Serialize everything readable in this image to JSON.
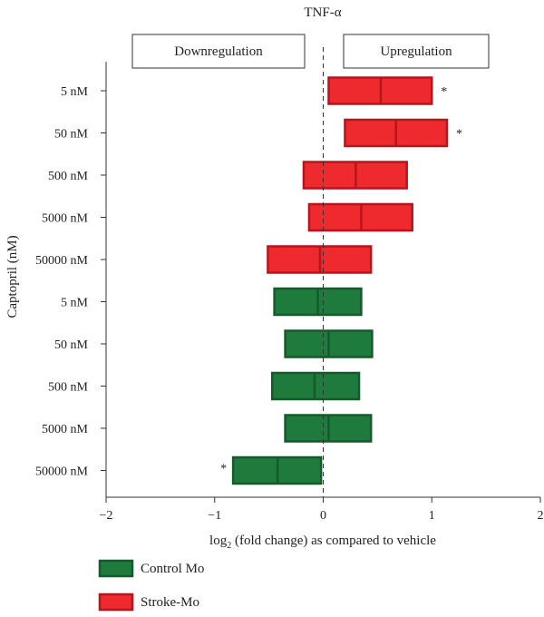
{
  "chart_data": {
    "type": "bar",
    "subtype": "floating-box",
    "title": "TNF-α",
    "ylabel": "Captopril (nM)",
    "xlabel_main": "log",
    "xlabel_sub": "2",
    "xlabel_rest": " (fold change) as compared to vehicle",
    "xlim": [
      -2,
      2
    ],
    "xticks": [
      "−2",
      "−1",
      "0",
      "1",
      "2"
    ],
    "xtick_values": [
      -2,
      -1,
      0,
      1,
      2
    ],
    "reference_line": 0,
    "annotations": {
      "left_box": "Downregulation",
      "right_box": "Upregulation"
    },
    "series": [
      {
        "name": "Stroke-Mo",
        "color": "#ee2a2e",
        "edge": "#b5161c"
      },
      {
        "name": "Control Mo",
        "color": "#1f7a3e",
        "edge": "#145a2b"
      }
    ],
    "categories": [
      "5 nM",
      "50 nM",
      "500 nM",
      "5000 nM",
      "50000 nM",
      "5 nM",
      "50 nM",
      "500 nM",
      "5000 nM",
      "50000 nM"
    ],
    "rows": [
      {
        "label": "5 nM",
        "series": "Stroke-Mo",
        "low": 0.05,
        "mid": 0.53,
        "high": 1.0,
        "significant": "*"
      },
      {
        "label": "50 nM",
        "series": "Stroke-Mo",
        "low": 0.2,
        "mid": 0.67,
        "high": 1.14,
        "significant": "*"
      },
      {
        "label": "500 nM",
        "series": "Stroke-Mo",
        "low": -0.18,
        "mid": 0.3,
        "high": 0.77,
        "significant": ""
      },
      {
        "label": "5000 nM",
        "series": "Stroke-Mo",
        "low": -0.13,
        "mid": 0.35,
        "high": 0.82,
        "significant": ""
      },
      {
        "label": "50000 nM",
        "series": "Stroke-Mo",
        "low": -0.51,
        "mid": -0.03,
        "high": 0.44,
        "significant": ""
      },
      {
        "label": "5 nM",
        "series": "Control Mo",
        "low": -0.45,
        "mid": -0.05,
        "high": 0.35,
        "significant": ""
      },
      {
        "label": "50 nM",
        "series": "Control Mo",
        "low": -0.35,
        "mid": 0.05,
        "high": 0.45,
        "significant": ""
      },
      {
        "label": "500 nM",
        "series": "Control Mo",
        "low": -0.47,
        "mid": -0.08,
        "high": 0.33,
        "significant": ""
      },
      {
        "label": "5000 nM",
        "series": "Control Mo",
        "low": -0.35,
        "mid": 0.05,
        "high": 0.44,
        "significant": ""
      },
      {
        "label": "50000 nM",
        "series": "Control Mo",
        "low": -0.83,
        "mid": -0.42,
        "high": -0.02,
        "significant": "*"
      }
    ],
    "legend": [
      {
        "label": "Control Mo",
        "color": "#1f7a3e",
        "edge": "#145a2b"
      },
      {
        "label": "Stroke-Mo",
        "color": "#ee2a2e",
        "edge": "#b5161c"
      }
    ],
    "legend_position": "bottom-left"
  }
}
